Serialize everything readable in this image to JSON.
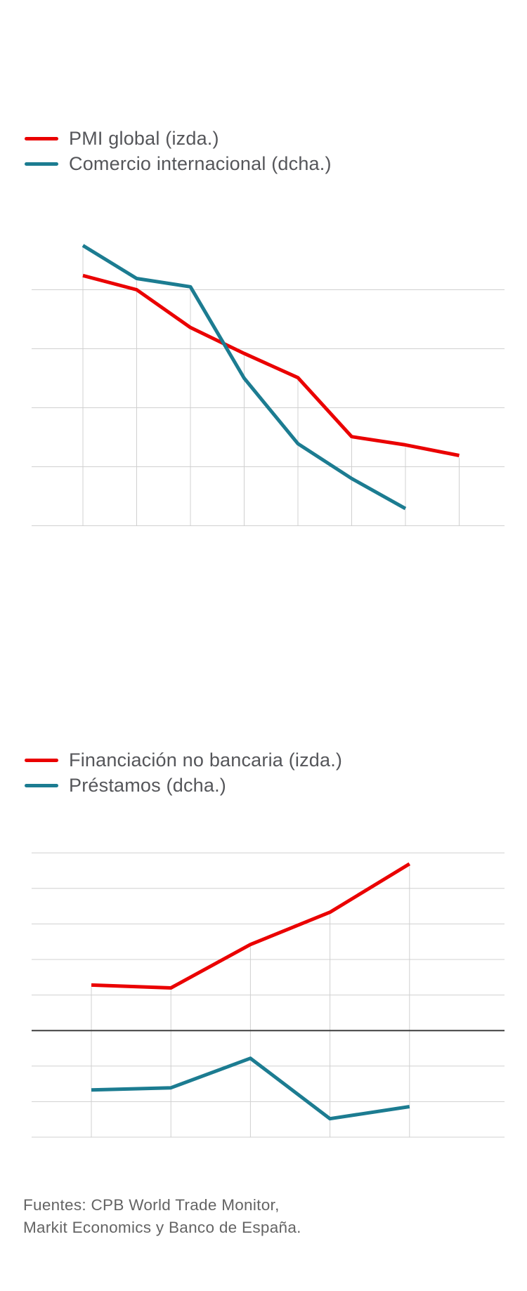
{
  "colors": {
    "red": "#ea0000",
    "teal": "#1c7c91",
    "gridline": "#d0d0d0",
    "zero_line": "#3f3f3f",
    "legend_text": "#55565a",
    "footer_text": "#646464"
  },
  "footer": {
    "lines": [
      "Fuentes: CPB World Trade Monitor,",
      "Markit Economics y Banco de España."
    ]
  },
  "chart_data": [
    {
      "type": "line",
      "title": "",
      "xlabel": "",
      "ylabel": "",
      "axis_labels_visible": false,
      "unit_note": "values measured in horizontal-gridline intervals above the bottom axis; the cropped figure shows no numeric tick labels",
      "x_index": [
        1,
        2,
        3,
        4,
        5,
        6,
        7,
        8
      ],
      "y_range_units": [
        0,
        4.75
      ],
      "grid": "horizontal lines every 1 unit; vertical drop-lines at each data point from upper series to bottom axis",
      "legend_position": "above chart, left aligned",
      "series": [
        {
          "name": "PMI global (izda.)",
          "color_key": "red",
          "axis": "left",
          "values": [
            4.24,
            4.0,
            3.36,
            2.92,
            2.51,
            1.51,
            1.37,
            1.19
          ]
        },
        {
          "name": "Comercio internacional (dcha.)",
          "color_key": "teal",
          "axis": "right",
          "values": [
            4.75,
            4.19,
            4.05,
            2.5,
            1.39,
            0.8,
            0.29
          ]
        }
      ]
    },
    {
      "type": "line",
      "title": "",
      "xlabel": "",
      "ylabel": "",
      "axis_labels_visible": false,
      "unit_note": "values measured in gridline intervals relative to the dark zero line; the cropped figure shows no numeric tick labels",
      "x_index": [
        1,
        2,
        3,
        4,
        5
      ],
      "y_range_units": [
        -3,
        5
      ],
      "grid": "horizontal light lines every 1 unit, dark line at 0; vertical drop-lines at each data point from upper series to bottom axis",
      "legend_position": "above chart, left aligned",
      "series": [
        {
          "name": "Financiación no bancaria (izda.)",
          "color_key": "red",
          "axis": "left",
          "values": [
            1.28,
            1.2,
            2.42,
            3.33,
            4.69
          ]
        },
        {
          "name": "Préstamos (dcha.)",
          "color_key": "teal",
          "axis": "right",
          "values": [
            -1.67,
            -1.61,
            -0.78,
            -2.48,
            -2.14
          ]
        }
      ]
    }
  ]
}
